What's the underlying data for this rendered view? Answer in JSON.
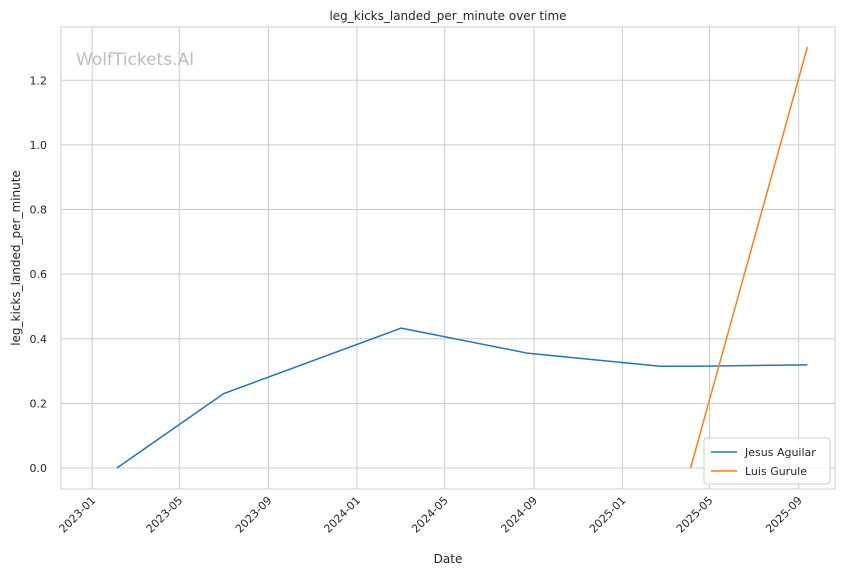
{
  "chart_data": {
    "type": "line",
    "title": "leg_kicks_landed_per_minute over time",
    "xlabel": "Date",
    "ylabel": "leg_kicks_landed_per_minute",
    "watermark": "WolfTickets.AI",
    "x_tick_labels": [
      "2023-01",
      "2023-05",
      "2023-09",
      "2024-01",
      "2024-05",
      "2024-09",
      "2025-01",
      "2025-05",
      "2025-09"
    ],
    "y_tick_labels": [
      "0.0",
      "0.2",
      "0.4",
      "0.6",
      "0.8",
      "1.0",
      "1.2"
    ],
    "x_ticks": [
      "2023-01-01",
      "2023-05-01",
      "2023-09-01",
      "2024-01-01",
      "2024-05-01",
      "2024-09-01",
      "2025-01-01",
      "2025-05-01",
      "2025-09-01"
    ],
    "y_ticks": [
      0.0,
      0.2,
      0.4,
      0.6,
      0.8,
      1.0,
      1.2
    ],
    "xlim": [
      "2022-11-19",
      "2025-10-21"
    ],
    "ylim": [
      -0.065,
      1.365
    ],
    "grid": true,
    "legend_position": "lower-right",
    "series": [
      {
        "name": "Jesus Aguilar",
        "color": "#1f77b4",
        "x": [
          "2023-02-04",
          "2023-07-01",
          "2024-03-02",
          "2024-08-24",
          "2025-02-22",
          "2025-04-12",
          "2025-09-13"
        ],
        "y": [
          0.0,
          0.23,
          0.433,
          0.355,
          0.315,
          0.315,
          0.319
        ]
      },
      {
        "name": "Luis Gurule",
        "color": "#ff7f0e",
        "x": [
          "2025-04-05",
          "2025-09-13"
        ],
        "y": [
          0.0,
          1.303
        ]
      }
    ]
  }
}
